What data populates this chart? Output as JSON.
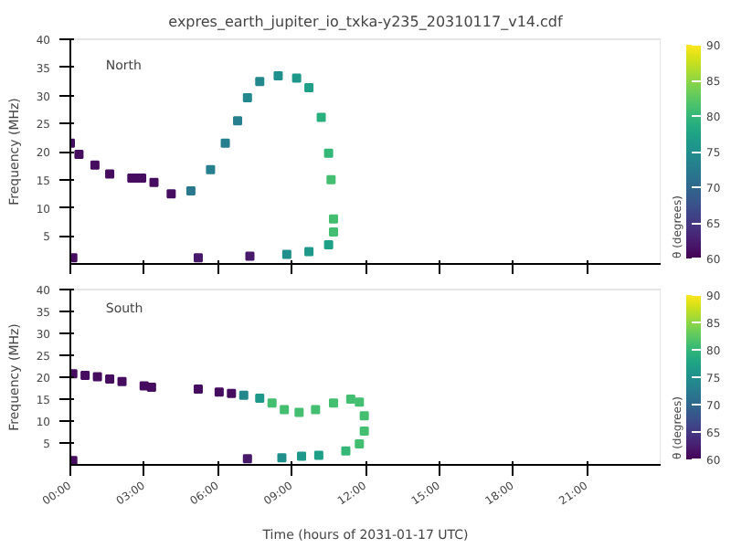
{
  "chart_data": [
    {
      "type": "scatter",
      "title": "expres_earth_jupiter_io_txka-y235_20310117_v14.cdf",
      "ylabel": "Frequency (MHz)",
      "clabel": "θ (degrees)",
      "annotations": [
        "North"
      ],
      "marker": "square",
      "tick_labels": "y",
      "x": [
        0.0,
        0.35,
        1.0,
        1.6,
        2.5,
        2.7,
        2.9,
        3.4,
        4.1,
        4.9,
        5.7,
        6.3,
        6.8,
        7.2,
        7.7,
        8.45,
        9.2,
        9.7,
        10.2,
        10.5,
        10.6,
        10.7,
        10.7,
        10.5,
        9.7,
        8.8,
        7.3,
        5.2,
        0.1
      ],
      "values": [
        21.5,
        19.5,
        17.6,
        16,
        15.3,
        15.3,
        15.3,
        14.5,
        12.5,
        13,
        16.8,
        21.5,
        25.5,
        29.6,
        32.5,
        33.5,
        33.1,
        31.4,
        26.1,
        19.7,
        15,
        8,
        5.7,
        3.4,
        2.2,
        1.7,
        1.4,
        1.1,
        1.1
      ],
      "cvalues": [
        61,
        61,
        61,
        61,
        61,
        61,
        61,
        61,
        61,
        72,
        73,
        73,
        73,
        74,
        74,
        75,
        76,
        77,
        79,
        80,
        81,
        81,
        81,
        77,
        76,
        75,
        62,
        62,
        61
      ],
      "xlim": [
        0,
        24
      ],
      "ylim": [
        0,
        40
      ],
      "yticks": [
        5,
        10,
        15,
        20,
        25,
        30,
        35,
        40
      ],
      "xticks": [
        {
          "value": 0,
          "label": null
        },
        {
          "value": 3,
          "label": null
        },
        {
          "value": 6,
          "label": null
        },
        {
          "value": 9,
          "label": null
        },
        {
          "value": 12,
          "label": null
        },
        {
          "value": 15,
          "label": null
        },
        {
          "value": 18,
          "label": null
        },
        {
          "value": 21,
          "label": null
        }
      ],
      "clim": [
        60,
        90
      ],
      "cticks": [
        60,
        65,
        70,
        75,
        80,
        85,
        90
      ]
    },
    {
      "type": "scatter",
      "xlabel": "Time (hours of 2031-01-17 UTC)",
      "ylabel": "Frequency (MHz)",
      "clabel": "θ (degrees)",
      "annotations": [
        "South"
      ],
      "marker": "square",
      "x": [
        0.1,
        0.6,
        1.1,
        1.6,
        2.1,
        3.0,
        3.3,
        5.2,
        6.05,
        6.55,
        7.05,
        7.7,
        8.2,
        8.7,
        9.3,
        9.97,
        10.7,
        11.4,
        11.75,
        11.95,
        11.95,
        11.75,
        11.2,
        10.1,
        9.4,
        8.6,
        7.2,
        0.1
      ],
      "values": [
        20.8,
        20.4,
        20.1,
        19.6,
        19,
        18,
        17.7,
        17.3,
        16.6,
        16.3,
        15.9,
        15.2,
        14.1,
        12.6,
        12.0,
        12.6,
        14.1,
        15,
        14.3,
        11.2,
        7.7,
        4.8,
        3.2,
        2.2,
        2.0,
        1.6,
        1.4,
        1.0
      ],
      "cvalues": [
        61,
        61,
        61,
        61,
        61,
        61,
        61,
        61,
        61,
        61,
        74,
        76,
        81,
        81,
        81,
        81,
        81,
        81,
        81,
        81,
        81,
        81,
        80,
        77,
        76,
        75,
        62,
        61
      ],
      "xlim": [
        0,
        24
      ],
      "ylim": [
        0,
        40
      ],
      "yticks": [
        5,
        10,
        15,
        20,
        25,
        30,
        35,
        40
      ],
      "xticks": [
        {
          "value": 0,
          "label": "00:00"
        },
        {
          "value": 3,
          "label": "03:00"
        },
        {
          "value": 6,
          "label": "06:00"
        },
        {
          "value": 9,
          "label": "09:00"
        },
        {
          "value": 12,
          "label": "12:00"
        },
        {
          "value": 15,
          "label": "15:00"
        },
        {
          "value": 18,
          "label": "18:00"
        },
        {
          "value": 21,
          "label": "21:00"
        }
      ],
      "clim": [
        60,
        90
      ],
      "cticks": [
        60,
        65,
        70,
        75,
        80,
        85,
        90
      ]
    }
  ]
}
